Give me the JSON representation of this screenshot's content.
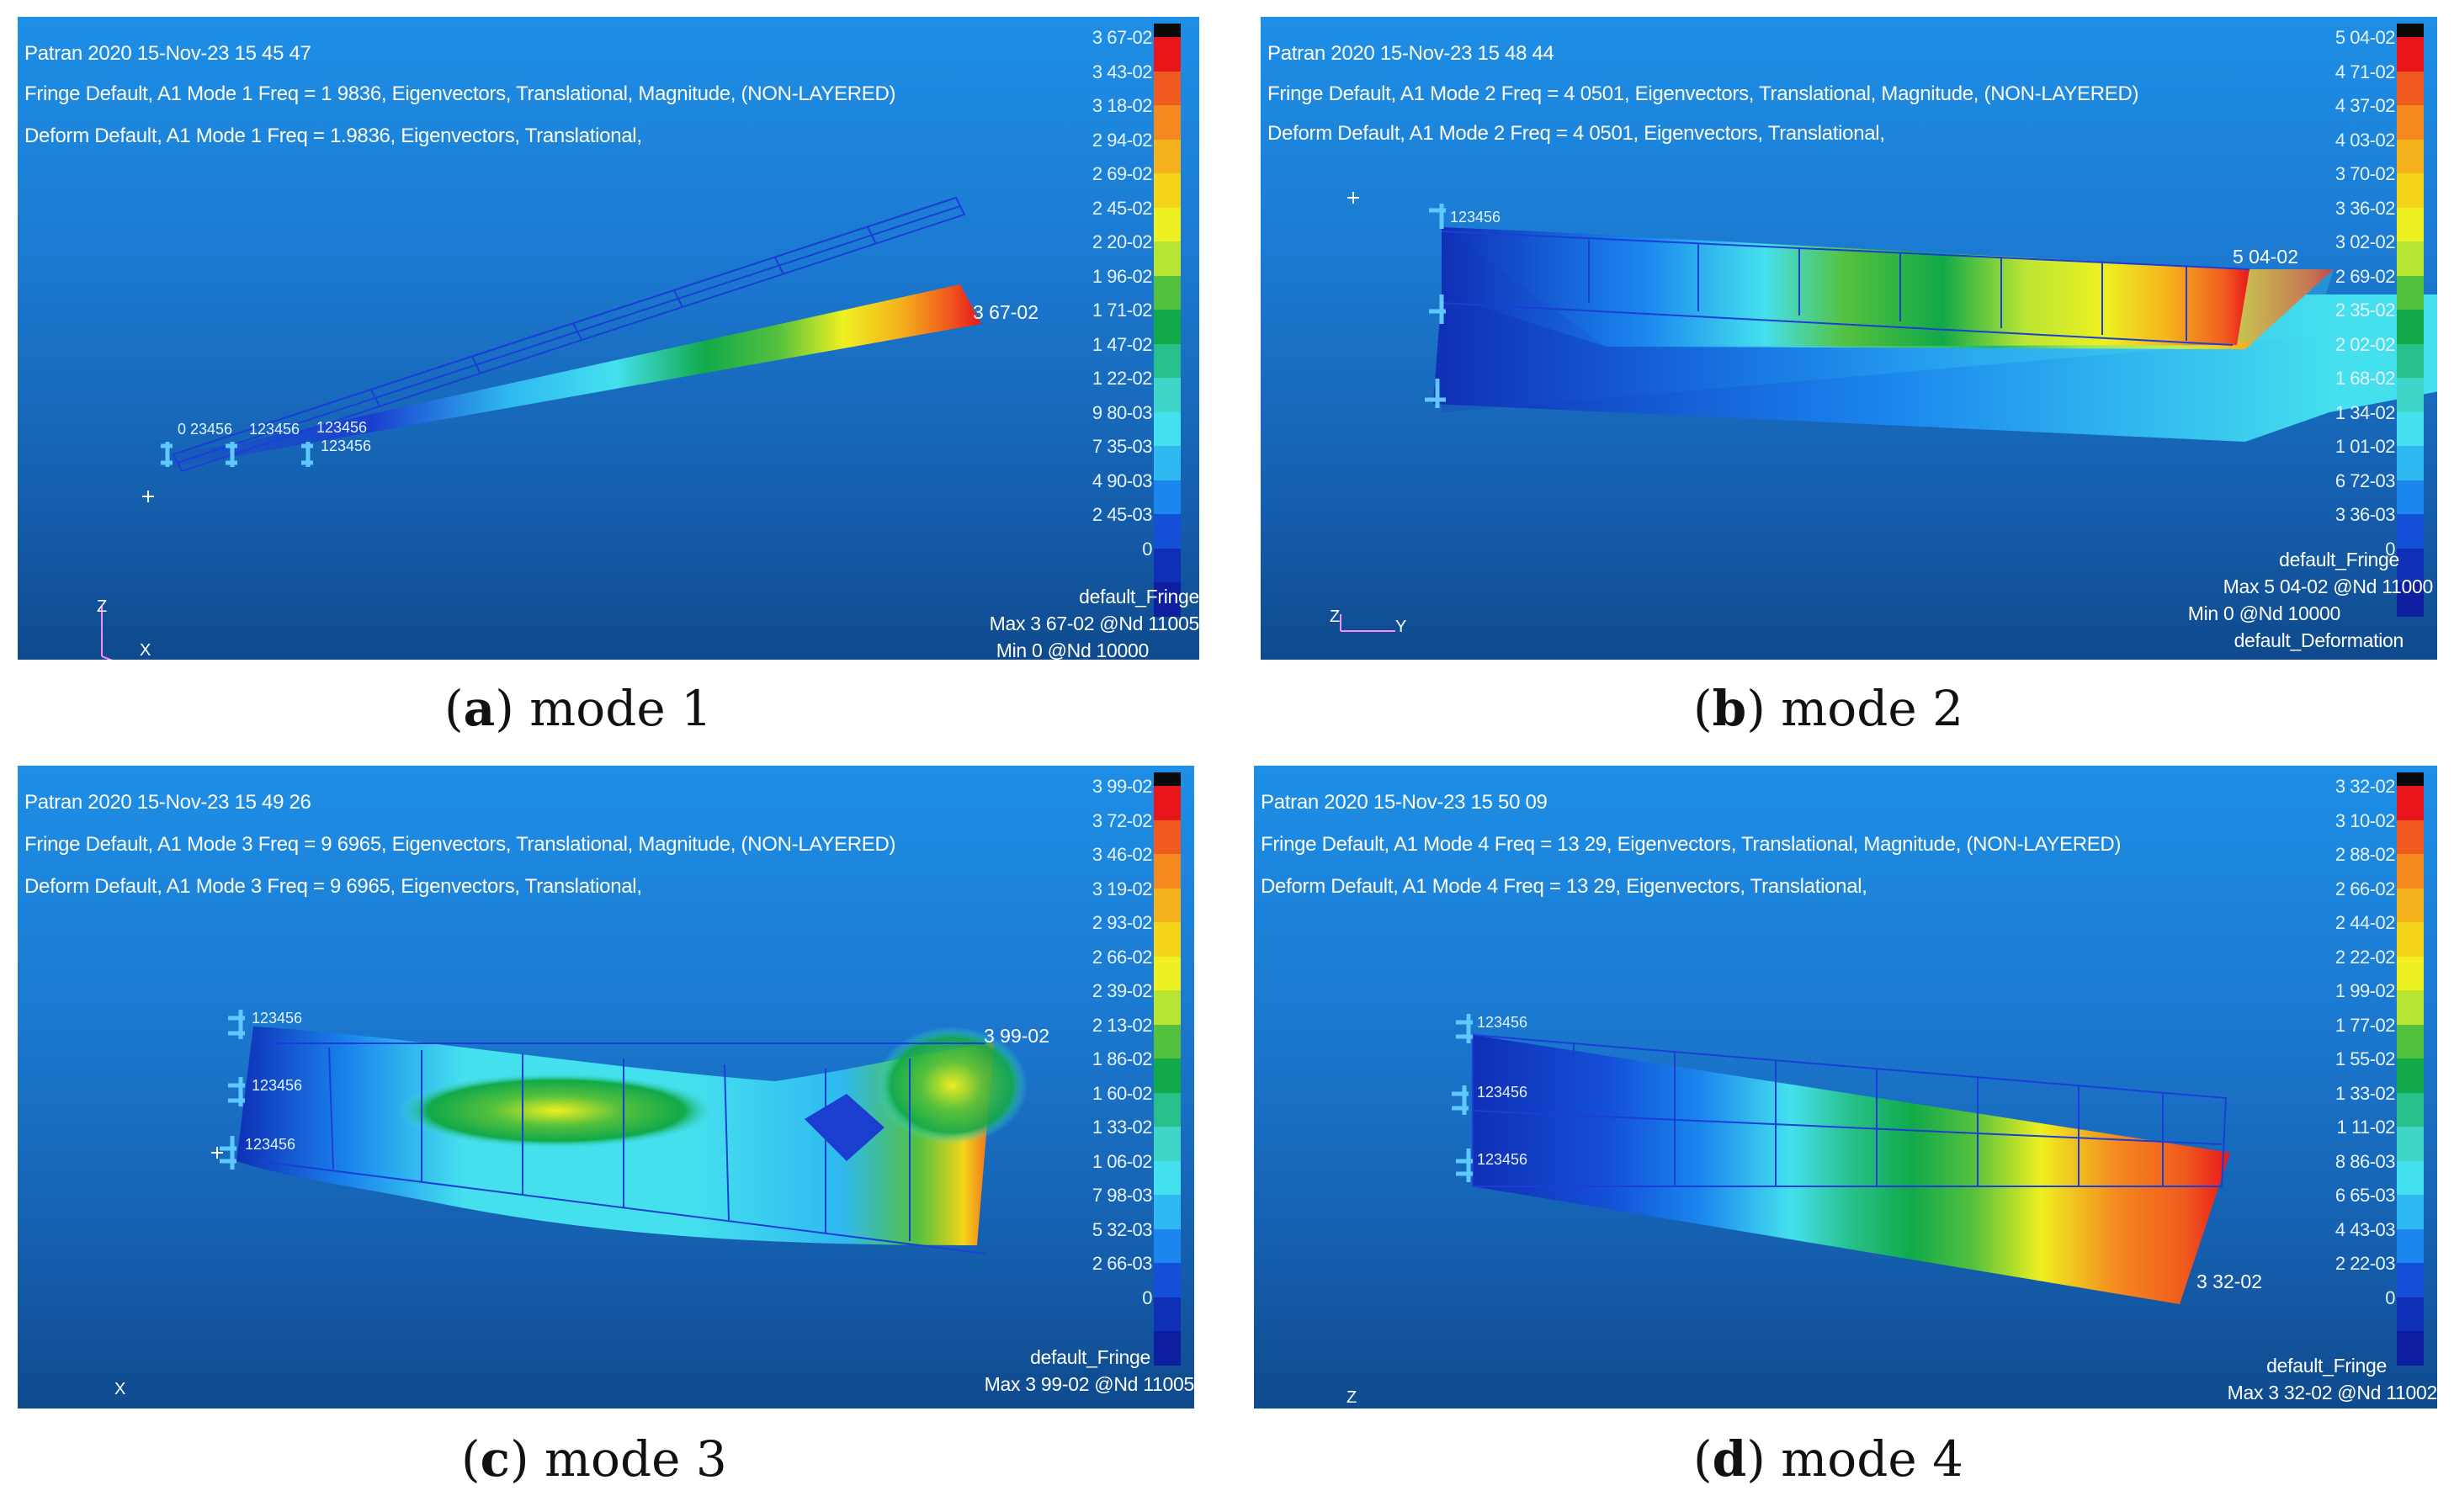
{
  "scale_colors": [
    "#0a0a0a",
    "#e8161b",
    "#f05a1e",
    "#f4891f",
    "#f5b21d",
    "#f4d51a",
    "#eef021",
    "#b8e534",
    "#54c13e",
    "#11a94a",
    "#27c08a",
    "#3fd6c9",
    "#45e0ee",
    "#2fb9f0",
    "#1a86ee",
    "#1450d7",
    "#0f2fb6",
    "#0d1fa0"
  ],
  "panels": [
    {
      "caption_letter": "a",
      "caption_text": " mode 1",
      "line1": "Patran 2020 15-Nov-23 15 45 47",
      "line2": "Fringe  Default, A1 Mode 1   Freq  = 1 9836, Eigenvectors, Translational, Magnitude, (NON-LAYERED)",
      "line3": "Deform  Default, A1 Mode 1   Freq  = 1.9836, Eigenvectors, Translational,",
      "scale_labels": [
        "3 67-02",
        "3 43-02",
        "3 18-02",
        "2 94-02",
        "2 69-02",
        "2 45-02",
        "2 20-02",
        "1 96-02",
        "1 71-02",
        "1 47-02",
        "1 22-02",
        "9 80-03",
        "7 35-03",
        "4 90-03",
        "2 45-03",
        "0"
      ],
      "max_tag": "3 67-02",
      "foot": [
        "default_Fringe",
        "Max 3 67-02 @Nd 11005",
        "Min  0  @Nd 10000"
      ],
      "nodes": [
        "0 23456",
        "123456",
        "123456",
        "123456"
      ],
      "axis": [
        "Z",
        "X"
      ]
    },
    {
      "caption_letter": "b",
      "caption_text": " mode 2",
      "line1": "Patran 2020 15-Nov-23 15 48 44",
      "line2": "Fringe  Default, A1 Mode 2   Freq  = 4 0501, Eigenvectors, Translational, Magnitude, (NON-LAYERED)",
      "line3": "Deform  Default, A1 Mode 2   Freq  = 4 0501, Eigenvectors, Translational,",
      "scale_labels": [
        "5 04-02",
        "4 71-02",
        "4 37-02",
        "4 03-02",
        "3 70-02",
        "3 36-02",
        "3 02-02",
        "2 69-02",
        "2 35-02",
        "2 02-02",
        "1 68-02",
        "1 34-02",
        "1 01-02",
        "6 72-03",
        "3 36-03",
        "0"
      ],
      "max_tag": "5 04-02",
      "foot": [
        "default_Fringe",
        "Max 5 04-02 @Nd 11000",
        "Min  0  @Nd 10000",
        "default_Deformation"
      ],
      "nodes": [
        "123456"
      ],
      "axis": [
        "Z",
        "Y"
      ]
    },
    {
      "caption_letter": "c",
      "caption_text": " mode 3",
      "line1": "Patran 2020 15-Nov-23 15 49 26",
      "line2": "Fringe  Default, A1 Mode 3   Freq  = 9 6965, Eigenvectors, Translational, Magnitude, (NON-LAYERED)",
      "line3": "Deform  Default, A1 Mode 3   Freq  = 9 6965, Eigenvectors, Translational,",
      "scale_labels": [
        "3 99-02",
        "3 72-02",
        "3 46-02",
        "3 19-02",
        "2 93-02",
        "2 66-02",
        "2 39-02",
        "2 13-02",
        "1 86-02",
        "1 60-02",
        "1 33-02",
        "1 06-02",
        "7 98-03",
        "5 32-03",
        "2 66-03",
        "0"
      ],
      "max_tag": "3 99-02",
      "foot": [
        "default_Fringe",
        "Max 3 99-02 @Nd 11005"
      ],
      "nodes": [
        "123456",
        "123456",
        "123456"
      ],
      "axis": [
        "X"
      ]
    },
    {
      "caption_letter": "d",
      "caption_text": " mode 4",
      "line1": "Patran 2020 15-Nov-23 15 50 09",
      "line2": "Fringe  Default, A1 Mode 4   Freq  = 13 29, Eigenvectors, Translational, Magnitude, (NON-LAYERED)",
      "line3": "Deform  Default, A1 Mode 4   Freq  = 13 29, Eigenvectors, Translational,",
      "scale_labels": [
        "3 32-02",
        "3 10-02",
        "2 88-02",
        "2 66-02",
        "2 44-02",
        "2 22-02",
        "1 99-02",
        "1 77-02",
        "1 55-02",
        "1 33-02",
        "1 11-02",
        "8 86-03",
        "6 65-03",
        "4 43-03",
        "2 22-03",
        "0"
      ],
      "max_tag": "3 32-02",
      "foot": [
        "default_Fringe",
        "Max 3 32-02 @Nd 11002"
      ],
      "nodes": [
        "123456",
        "123456",
        "123456"
      ],
      "axis": [
        "Z"
      ]
    }
  ]
}
